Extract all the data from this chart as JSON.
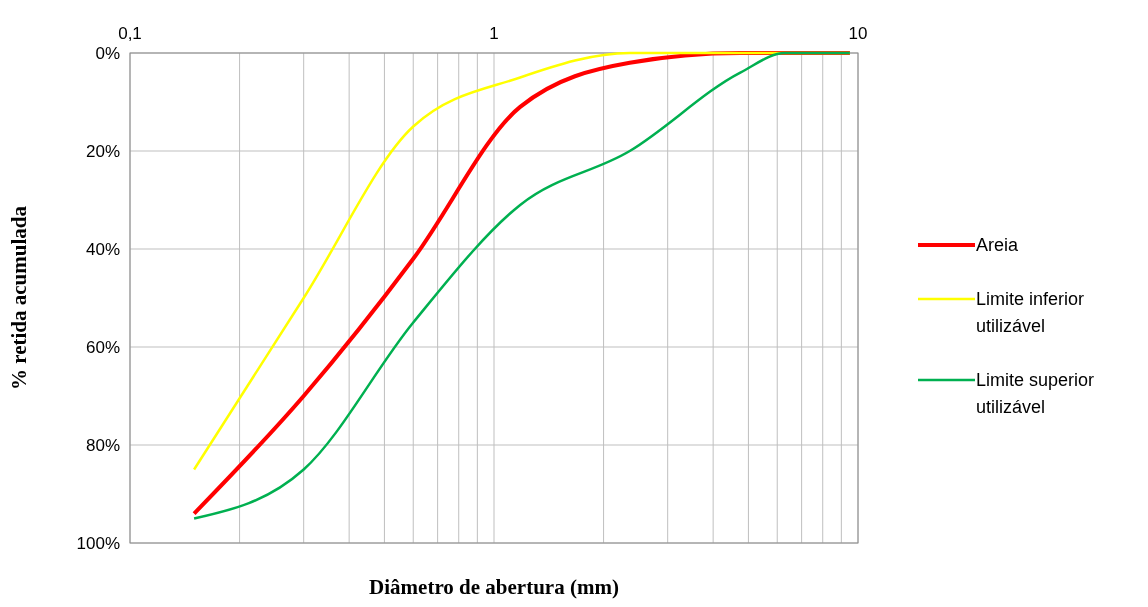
{
  "chart_data": {
    "type": "line",
    "xlabel": "Diâmetro de abertura (mm)",
    "ylabel": "% retida acumulada",
    "log": "x",
    "x": [
      0.15,
      0.3,
      0.6,
      1.18,
      2.36,
      4.75,
      6.3,
      9.5
    ],
    "series": [
      {
        "name": "Areia",
        "color": "#ff0000",
        "values": [
          94,
          70,
          42,
          11,
          2,
          0,
          0,
          0
        ]
      },
      {
        "name": "Limite inferior utilizável",
        "color": "#ffff00",
        "values": [
          85,
          50,
          15,
          5,
          0,
          0,
          0,
          0
        ]
      },
      {
        "name": "Limite superior utilizável",
        "color": "#00b050",
        "values": [
          95,
          85,
          55,
          31,
          20,
          4,
          0,
          0
        ]
      }
    ],
    "xlim": [
      0.1,
      10
    ],
    "xticks": [
      {
        "value": 0.1,
        "label": "0,1"
      },
      {
        "value": 0.2,
        "label": null
      },
      {
        "value": 0.3,
        "label": null
      },
      {
        "value": 0.4,
        "label": null
      },
      {
        "value": 0.5,
        "label": null
      },
      {
        "value": 0.6,
        "label": null
      },
      {
        "value": 0.7,
        "label": null
      },
      {
        "value": 0.8,
        "label": null
      },
      {
        "value": 0.9,
        "label": null
      },
      1,
      {
        "value": 2,
        "label": null
      },
      {
        "value": 3,
        "label": null
      },
      {
        "value": 4,
        "label": null
      },
      {
        "value": 5,
        "label": null
      },
      {
        "value": 6,
        "label": null
      },
      {
        "value": 7,
        "label": null
      },
      {
        "value": 8,
        "label": null
      },
      {
        "value": 9,
        "label": null
      },
      10
    ],
    "ylim": [
      100,
      0
    ],
    "yticks": [
      {
        "value": 0,
        "label": "0%"
      },
      {
        "value": 20,
        "label": "20%"
      },
      {
        "value": 40,
        "label": "40%"
      },
      {
        "value": 60,
        "label": "60%"
      },
      {
        "value": 80,
        "label": "80%"
      },
      {
        "value": 100,
        "label": "100%"
      }
    ],
    "grid": true,
    "legend": "right"
  }
}
